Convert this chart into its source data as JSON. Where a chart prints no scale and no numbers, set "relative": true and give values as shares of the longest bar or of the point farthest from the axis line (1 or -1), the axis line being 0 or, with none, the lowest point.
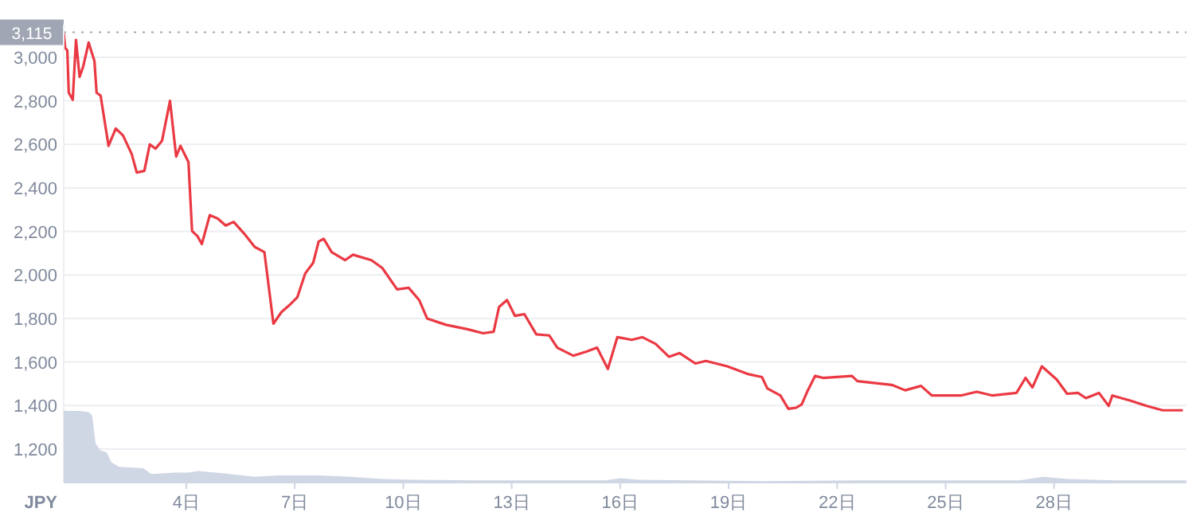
{
  "chart_data": [
    {
      "type": "line",
      "ylabel": "JPY",
      "tick_labels": "y",
      "grid": "y",
      "xlim": [
        0.61,
        31.66
      ],
      "ylim": [
        1046,
        3150
      ],
      "yticks": [
        {
          "value": 1200,
          "label": "1,200"
        },
        {
          "value": 1400,
          "label": "1,400"
        },
        {
          "value": 1600,
          "label": "1,600"
        },
        {
          "value": 1800,
          "label": "1,800"
        },
        {
          "value": 2000,
          "label": "2,000"
        },
        {
          "value": 2200,
          "label": "2,200"
        },
        {
          "value": 2400,
          "label": "2,400"
        },
        {
          "value": 2600,
          "label": "2,600"
        },
        {
          "value": 2800,
          "label": "2,800"
        },
        {
          "value": 3000,
          "label": "3,000"
        }
      ],
      "ref_lines": [
        {
          "axis": "y",
          "value": 3115,
          "label": "3,115",
          "color": "#a0a6b3",
          "line_style": "dotted"
        }
      ],
      "series": [
        {
          "color": "#ea3943",
          "x": [
            0.61,
            0.65,
            0.71,
            0.75,
            0.86,
            0.95,
            1.05,
            1.15,
            1.3,
            1.46,
            1.52,
            1.63,
            1.85,
            2.05,
            2.25,
            2.49,
            2.63,
            2.84,
            2.99,
            3.15,
            3.33,
            3.55,
            3.72,
            3.84,
            4.06,
            4.16,
            4.31,
            4.43,
            4.65,
            4.87,
            5.09,
            5.31,
            5.6,
            5.89,
            6.16,
            6.41,
            6.63,
            6.85,
            7.07,
            7.29,
            7.51,
            7.66,
            7.8,
            8.02,
            8.39,
            8.61,
            9.12,
            9.42,
            9.83,
            10.15,
            10.44,
            10.66,
            11.18,
            11.77,
            12.21,
            12.5,
            12.65,
            12.87,
            13.09,
            13.35,
            13.68,
            14.04,
            14.26,
            14.7,
            15.07,
            15.36,
            15.66,
            15.92,
            16.32,
            16.61,
            16.98,
            17.35,
            17.64,
            18.08,
            18.37,
            18.96,
            19.55,
            19.92,
            20.07,
            20.43,
            20.65,
            20.87,
            21.02,
            21.17,
            21.39,
            21.61,
            22.41,
            22.56,
            23.51,
            23.88,
            24.32,
            24.62,
            25.42,
            25.86,
            26.3,
            26.96,
            27.21,
            27.4,
            27.66,
            28.07,
            28.36,
            28.66,
            28.88,
            29.24,
            29.51,
            29.61,
            30.12,
            30.56,
            31.0,
            31.56
          ],
          "values": [
            3115,
            3044,
            3031,
            2837,
            2805,
            3080,
            2910,
            2958,
            3068,
            2983,
            2837,
            2824,
            2593,
            2673,
            2641,
            2556,
            2471,
            2478,
            2600,
            2580,
            2617,
            2800,
            2544,
            2593,
            2519,
            2202,
            2178,
            2142,
            2275,
            2259,
            2227,
            2244,
            2190,
            2129,
            2105,
            1776,
            1829,
            1861,
            1897,
            2007,
            2056,
            2153,
            2166,
            2105,
            2068,
            2093,
            2068,
            2032,
            1934,
            1941,
            1885,
            1800,
            1771,
            1751,
            1732,
            1739,
            1853,
            1885,
            1812,
            1820,
            1727,
            1722,
            1666,
            1629,
            1648,
            1666,
            1568,
            1714,
            1702,
            1714,
            1683,
            1624,
            1641,
            1593,
            1605,
            1580,
            1544,
            1531,
            1478,
            1446,
            1385,
            1390,
            1405,
            1463,
            1536,
            1527,
            1536,
            1512,
            1495,
            1470,
            1490,
            1446,
            1446,
            1463,
            1446,
            1458,
            1527,
            1483,
            1580,
            1520,
            1454,
            1458,
            1434,
            1458,
            1398,
            1446,
            1422,
            1398,
            1378,
            1378
          ]
        }
      ]
    },
    {
      "type": "area",
      "relative": true,
      "tick_labels": "x",
      "color": "#cfd6e4",
      "xlim": [
        0.61,
        31.66
      ],
      "xticks": [
        {
          "value": 4,
          "label": "4日"
        },
        {
          "value": 7,
          "label": "7日"
        },
        {
          "value": 10,
          "label": "10日"
        },
        {
          "value": 13,
          "label": "13日"
        },
        {
          "value": 16,
          "label": "16日"
        },
        {
          "value": 19,
          "label": "19日"
        },
        {
          "value": 22,
          "label": "22日"
        },
        {
          "value": 25,
          "label": "25日"
        },
        {
          "value": 28,
          "label": "28日"
        }
      ],
      "x": [
        0.61,
        1.05,
        1.31,
        1.4,
        1.49,
        1.62,
        1.8,
        1.93,
        2.15,
        2.81,
        3.03,
        3.69,
        4.04,
        4.35,
        5.01,
        5.89,
        6.55,
        7.66,
        8.54,
        9.42,
        10.3,
        12.06,
        15.59,
        16.03,
        16.47,
        19.99,
        22.63,
        27.04,
        27.7,
        28.36,
        29.68,
        31.66
      ],
      "values": [
        1.0,
        1.0,
        0.98,
        0.93,
        0.55,
        0.45,
        0.42,
        0.28,
        0.22,
        0.2,
        0.12,
        0.14,
        0.14,
        0.16,
        0.13,
        0.08,
        0.1,
        0.1,
        0.08,
        0.05,
        0.04,
        0.03,
        0.03,
        0.06,
        0.04,
        0.02,
        0.03,
        0.03,
        0.08,
        0.05,
        0.03,
        0.03
      ]
    }
  ]
}
